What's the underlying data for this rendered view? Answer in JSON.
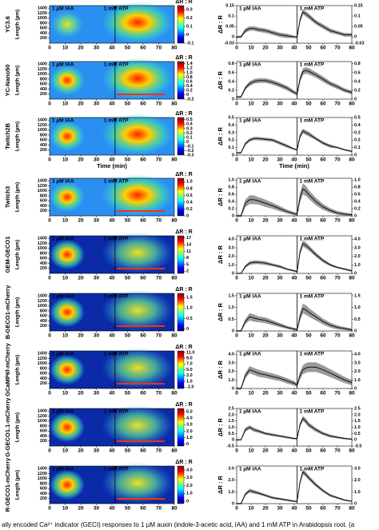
{
  "annotations": {
    "iaa": "1 µM IAA",
    "atp": "1 mM ATP",
    "delta": "ΔR : R",
    "length": "Length (µm)",
    "time_label": "Time (min)"
  },
  "caption": "ally encoded Ca²⁺ indicator (GECI) responses to 1 µM auxin (indole-3-acetic acid, IAA) and 1 mM ATP in Arabidopsis root. (a",
  "atp_time": 42,
  "time_lim": [
    0,
    80
  ],
  "time_ticks": [
    0,
    10,
    20,
    30,
    40,
    50,
    60,
    70,
    80
  ],
  "length_lim": [
    0,
    1500
  ],
  "length_ticks": [
    200,
    400,
    600,
    800,
    1000,
    1200,
    1400
  ],
  "time": [
    0,
    3,
    6,
    9,
    12,
    15,
    20,
    25,
    30,
    35,
    40,
    42,
    44,
    46,
    48,
    50,
    55,
    60,
    65,
    70,
    75,
    80
  ],
  "panels": [
    {
      "label": "YC3.6",
      "clim": [
        -0.1,
        0.35
      ],
      "colorbar_ticks": [
        0.3,
        0.2,
        0.1,
        0,
        -0.1
      ],
      "line": {
        "ylim": [
          -0.03,
          0.15
        ],
        "yticks": [
          0.15,
          0.1,
          0.05,
          0,
          -0.03
        ],
        "mean": [
          0,
          0,
          0.03,
          0.04,
          0.04,
          0.035,
          0.03,
          0.02,
          0.01,
          0.005,
          0,
          0,
          0.08,
          0.12,
          0.11,
          0.1,
          0.07,
          0.05,
          0.03,
          0.02,
          0.01,
          0.01
        ],
        "err": [
          0.005,
          0.005,
          0.01,
          0.01,
          0.01,
          0.01,
          0.01,
          0.01,
          0.01,
          0.01,
          0.005,
          0.005,
          0.01,
          0.012,
          0.012,
          0.012,
          0.01,
          0.01,
          0.01,
          0.008,
          0.008,
          0.008
        ]
      }
    },
    {
      "label": "YC-Nano50",
      "clim": [
        -0.2,
        1.5
      ],
      "colorbar_ticks": [
        1.4,
        1.2,
        {
          "value": 1,
          "label": "1.0"
        },
        0.8,
        0.6,
        0.4,
        0.2,
        0,
        -0.2
      ],
      "line": {
        "ylim": [
          0,
          0.85
        ],
        "yticks": [
          0.8,
          0.6,
          0.4,
          0.2,
          0
        ],
        "mean": [
          0.05,
          0.05,
          0.25,
          0.35,
          0.4,
          0.42,
          0.42,
          0.38,
          0.32,
          0.25,
          0.15,
          0.12,
          0.45,
          0.62,
          0.65,
          0.63,
          0.55,
          0.45,
          0.35,
          0.28,
          0.2,
          0.15
        ],
        "err": [
          0.02,
          0.02,
          0.04,
          0.05,
          0.05,
          0.05,
          0.05,
          0.05,
          0.05,
          0.05,
          0.04,
          0.04,
          0.06,
          0.07,
          0.07,
          0.07,
          0.06,
          0.06,
          0.05,
          0.05,
          0.04,
          0.04
        ]
      }
    },
    {
      "label": "Twitch2B",
      "clim": [
        -0.3,
        0.55
      ],
      "colorbar_ticks": [
        0.5,
        0.4,
        0.3,
        0.2,
        0.1,
        0,
        -0.1,
        -0.2,
        -0.3
      ],
      "line": {
        "ylim": [
          0,
          0.5
        ],
        "yticks": [
          0.5,
          0.4,
          0.3,
          0.2,
          0.1,
          0
        ],
        "mean": [
          0.03,
          0.03,
          0.15,
          0.2,
          0.22,
          0.22,
          0.21,
          0.2,
          0.16,
          0.12,
          0.08,
          0.07,
          0.25,
          0.32,
          0.3,
          0.28,
          0.22,
          0.16,
          0.12,
          0.1,
          0.07,
          0.05
        ],
        "err": [
          0.01,
          0.01,
          0.02,
          0.02,
          0.02,
          0.02,
          0.02,
          0.02,
          0.02,
          0.02,
          0.01,
          0.01,
          0.03,
          0.03,
          0.03,
          0.03,
          0.02,
          0.02,
          0.02,
          0.01,
          0.01,
          0.01
        ]
      }
    },
    {
      "label": "Twitch3",
      "clim": [
        0,
        1.1
      ],
      "colorbar_ticks": [
        {
          "value": 1,
          "label": "1.0"
        },
        0.8,
        0.6,
        0.4,
        0.2,
        0
      ],
      "line": {
        "ylim": [
          0,
          1.05
        ],
        "yticks": [
          {
            "value": 1,
            "label": "1.0"
          },
          0.8,
          0.6,
          0.4,
          0.2,
          0
        ],
        "mean": [
          0,
          0,
          0.35,
          0.45,
          0.45,
          0.42,
          0.35,
          0.28,
          0.2,
          0.12,
          0.06,
          0.05,
          0.5,
          0.75,
          0.7,
          0.6,
          0.4,
          0.25,
          0.15,
          0.08,
          0.05,
          0.03
        ],
        "err": [
          0.03,
          0.03,
          0.1,
          0.12,
          0.12,
          0.1,
          0.1,
          0.08,
          0.07,
          0.05,
          0.04,
          0.04,
          0.12,
          0.15,
          0.14,
          0.12,
          0.1,
          0.08,
          0.06,
          0.05,
          0.04,
          0.03
        ]
      }
    },
    {
      "label": "GEM-GECO1",
      "clim": [
        1,
        18
      ],
      "colorbar_ticks": [
        17,
        14,
        11,
        8,
        5,
        2
      ],
      "line": {
        "ylim": [
          0,
          4.4
        ],
        "yticks": [
          {
            "value": 4,
            "label": "4.0"
          },
          {
            "value": 3,
            "label": "3.0"
          },
          {
            "value": 2,
            "label": "2.0"
          },
          {
            "value": 1,
            "label": "1.0"
          },
          0
        ],
        "mean": [
          0,
          0,
          0.8,
          1.2,
          1.3,
          1.3,
          1.2,
          1,
          0.8,
          0.5,
          0.3,
          0.2,
          2.5,
          3.5,
          3.3,
          3,
          2.2,
          1.5,
          1,
          0.7,
          0.5,
          0.3
        ],
        "err": [
          0.05,
          0.05,
          0.15,
          0.2,
          0.2,
          0.2,
          0.2,
          0.15,
          0.15,
          0.1,
          0.1,
          0.1,
          0.3,
          0.35,
          0.35,
          0.3,
          0.25,
          0.2,
          0.15,
          0.1,
          0.1,
          0.1
        ]
      }
    },
    {
      "label": "B-GECO1-mCherry",
      "clim": [
        -0.1,
        1.7
      ],
      "colorbar_ticks": [
        1.5,
        {
          "value": 1,
          "label": "1.0"
        },
        0.5,
        0
      ],
      "line": {
        "ylim": [
          0,
          1.6
        ],
        "yticks": [
          1.5,
          {
            "value": 1,
            "label": "1.0"
          },
          0.5,
          0
        ],
        "mean": [
          0,
          0,
          0.4,
          0.6,
          0.55,
          0.5,
          0.45,
          0.35,
          0.25,
          0.15,
          0.08,
          0.05,
          0.6,
          0.95,
          0.9,
          0.8,
          0.6,
          0.4,
          0.25,
          0.15,
          0.1,
          0.05
        ],
        "err": [
          0.03,
          0.03,
          0.1,
          0.15,
          0.15,
          0.12,
          0.12,
          0.1,
          0.08,
          0.06,
          0.05,
          0.05,
          0.15,
          0.2,
          0.2,
          0.18,
          0.15,
          0.12,
          0.1,
          0.08,
          0.06,
          0.05
        ]
      }
    },
    {
      "label": "GCaMP6f-mCherry",
      "clim": [
        -1.5,
        11.5
      ],
      "colorbar_ticks": [
        {
          "value": 11,
          "label": "11.0"
        },
        {
          "value": 9,
          "label": "9.0"
        },
        {
          "value": 7,
          "label": "7.0"
        },
        {
          "value": 5,
          "label": "5.0"
        },
        {
          "value": 3,
          "label": "3.0"
        },
        {
          "value": 1,
          "label": "1.0"
        },
        {
          "value": -1,
          "label": "-1.0"
        }
      ],
      "line": {
        "ylim": [
          0,
          4.4
        ],
        "yticks": [
          {
            "value": 4,
            "label": "4.0"
          },
          {
            "value": 3,
            "label": "3.0"
          },
          {
            "value": 2,
            "label": "2.0"
          },
          {
            "value": 1,
            "label": "1.0"
          },
          0
        ],
        "mean": [
          0,
          0,
          1.5,
          2.2,
          2,
          1.8,
          1.6,
          1.4,
          1.2,
          0.9,
          0.6,
          0.4,
          1.5,
          2.2,
          2.4,
          2.5,
          2.5,
          2.2,
          1.8,
          1.4,
          1,
          0.7
        ],
        "err": [
          0.1,
          0.1,
          0.3,
          0.4,
          0.4,
          0.4,
          0.35,
          0.35,
          0.3,
          0.3,
          0.25,
          0.2,
          0.4,
          0.5,
          0.55,
          0.55,
          0.55,
          0.5,
          0.45,
          0.4,
          0.35,
          0.3
        ]
      }
    },
    {
      "label": "G-GECO1.1-mCherry",
      "clim": [
        -0.3,
        5.5
      ],
      "colorbar_ticks": [
        {
          "value": 5,
          "label": "5.0"
        },
        {
          "value": 4,
          "label": "4.0"
        },
        {
          "value": 3,
          "label": "3.0"
        },
        {
          "value": 2,
          "label": "2.0"
        },
        {
          "value": 1,
          "label": "1.0"
        },
        0
      ],
      "line": {
        "ylim": [
          -0.5,
          2.5
        ],
        "yticks": [
          2.5,
          {
            "value": 2,
            "label": "2.0"
          },
          1.5,
          {
            "value": 1,
            "label": "1.0"
          },
          0.5,
          0,
          -0.5
        ],
        "mean": [
          0,
          0,
          0.8,
          1,
          0.8,
          0.7,
          0.5,
          0.4,
          0.3,
          0.2,
          0.1,
          0.1,
          1.2,
          1.7,
          1.5,
          1.2,
          0.8,
          0.5,
          0.3,
          0.2,
          0.1,
          0.05
        ],
        "err": [
          0.05,
          0.05,
          0.15,
          0.15,
          0.15,
          0.12,
          0.1,
          0.1,
          0.08,
          0.08,
          0.06,
          0.06,
          0.15,
          0.2,
          0.2,
          0.18,
          0.15,
          0.12,
          0.1,
          0.08,
          0.06,
          0.05
        ]
      }
    },
    {
      "label": "R-GECO1-mCherry",
      "clim": [
        -0.3,
        4.5
      ],
      "colorbar_ticks": [
        {
          "value": 4,
          "label": "4.0"
        },
        {
          "value": 3,
          "label": "3.0"
        },
        {
          "value": 2,
          "label": "2.0"
        },
        {
          "value": 1,
          "label": "1.0"
        },
        0
      ],
      "line": {
        "ylim": [
          0,
          3.2
        ],
        "yticks": [
          {
            "value": 3,
            "label": "3.0"
          },
          {
            "value": 2,
            "label": "2.0"
          },
          {
            "value": 1,
            "label": "1.0"
          },
          0
        ],
        "mean": [
          0,
          0,
          0.8,
          1.1,
          1,
          0.9,
          0.7,
          0.5,
          0.4,
          0.3,
          0.2,
          0.2,
          1.8,
          2.7,
          2.5,
          2.2,
          1.6,
          1.1,
          0.7,
          0.5,
          0.3,
          0.2
        ],
        "err": [
          0.05,
          0.05,
          0.12,
          0.15,
          0.15,
          0.12,
          0.1,
          0.1,
          0.08,
          0.08,
          0.06,
          0.06,
          0.15,
          0.2,
          0.2,
          0.18,
          0.15,
          0.12,
          0.1,
          0.08,
          0.06,
          0.05
        ]
      }
    }
  ]
}
